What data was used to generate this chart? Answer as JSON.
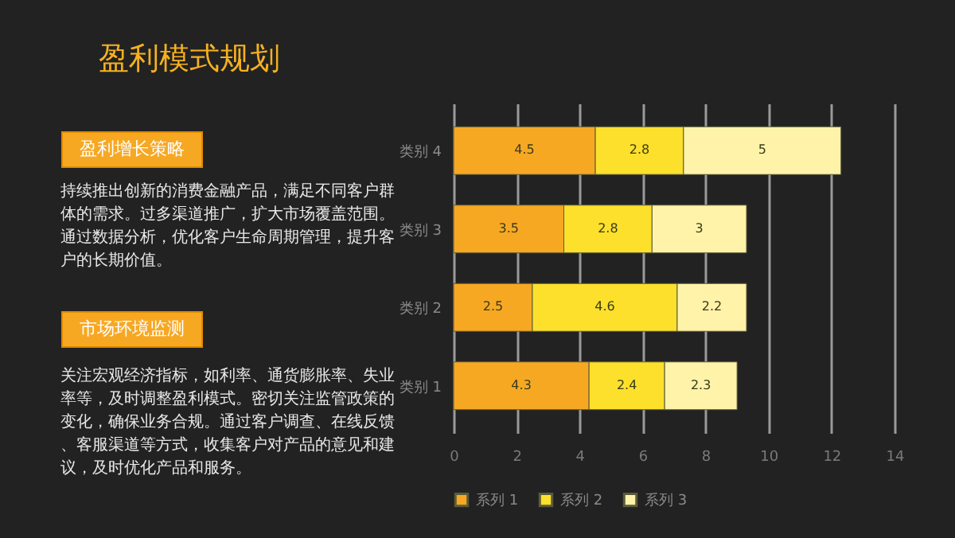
{
  "chart_data": {
    "type": "bar",
    "orientation": "horizontal",
    "stacked": true,
    "title": "盈利模式规划",
    "annotations": [
      "盈利增长策略",
      "持续推出创新的消费金融产品，满足不同客户群体的需求。过多渠道推广，扩大市场覆盖范围。通过数据分析，优化客户生命周期管理，提升客户的长期价值。",
      "市场环境监测",
      "关注宏观经济指标，如利率、通货膨胀率、失业率等，及时调整盈利模式。密切关注监管政策的变化，确保业务合规。通过客户调查、在线反馈、客服渠道等方式，收集客户对产品的意见和建议，及时优化产品和服务。"
    ],
    "categories": [
      "类别 4",
      "类别 3",
      "类别 2",
      "类别 1"
    ],
    "series": [
      {
        "name": "系列 1",
        "color": "#f7a823",
        "values": [
          4.5,
          3.5,
          2.5,
          4.3
        ]
      },
      {
        "name": "系列 2",
        "color": "#fde02b",
        "values": [
          2.8,
          2.8,
          4.6,
          2.4
        ]
      },
      {
        "name": "系列 3",
        "color": "#fff3aa",
        "values": [
          5,
          3,
          2.2,
          2.3
        ]
      }
    ],
    "xlim": [
      0,
      14
    ],
    "xticks": [
      0,
      2,
      4,
      6,
      8,
      10,
      12,
      14
    ],
    "grid": "x",
    "legend": "bottom",
    "data_labels": true
  }
}
